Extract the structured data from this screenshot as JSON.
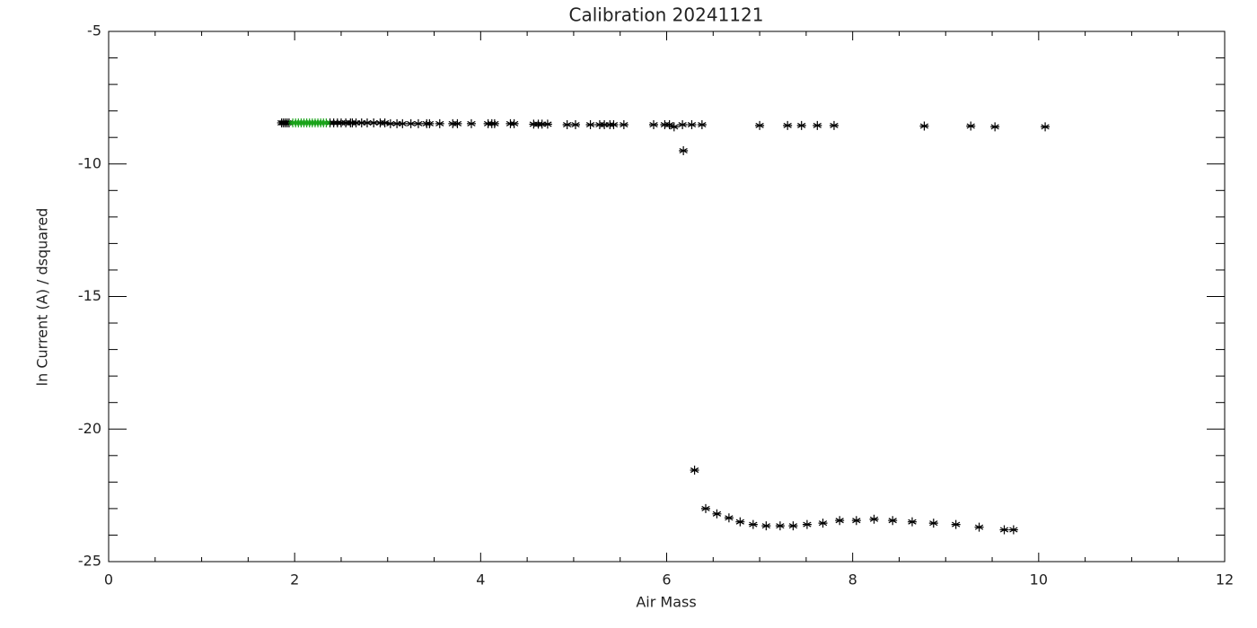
{
  "chart_data": {
    "type": "scatter",
    "title": "Calibration 20241121",
    "x_label": "Air Mass",
    "y_label": "ln Current (A) / dsquared",
    "xlim": [
      0,
      12
    ],
    "xticks": [
      0,
      2,
      4,
      6,
      8,
      10,
      12
    ],
    "x_minor_ticks": [
      0.5,
      1,
      1.5,
      2.5,
      3,
      3.5,
      4.5,
      5,
      5.5,
      6.5,
      7,
      7.5,
      8.5,
      9,
      9.5,
      10.5,
      11,
      11.5
    ],
    "ylim": [
      -25,
      -5
    ],
    "yticks": [
      -25,
      -20,
      -15,
      -10,
      -5
    ],
    "y_minor_ticks": [
      -24,
      -23,
      -22,
      -21,
      -19,
      -18,
      -17,
      -16,
      -14,
      -13,
      -12,
      -11,
      -9,
      -8,
      -7,
      -6
    ],
    "grid": false,
    "marker": "asterisk",
    "series": [
      {
        "color": "#000000",
        "x": [
          1.86,
          1.88,
          1.9,
          1.92,
          1.94,
          2.38,
          2.42,
          2.46,
          2.5,
          2.55,
          2.6,
          2.62,
          2.66,
          2.72,
          2.78,
          2.85,
          2.92,
          2.97,
          3.03,
          3.1,
          3.16,
          3.25,
          3.33,
          3.42,
          3.45,
          3.56,
          3.7,
          3.75,
          3.9,
          4.08,
          4.12,
          4.15,
          4.32,
          4.36,
          4.57,
          4.62,
          4.66,
          4.72,
          4.93,
          5.02,
          5.18,
          5.28,
          5.33,
          5.39,
          5.43,
          5.54,
          5.86,
          5.98,
          6.03,
          6.08,
          6.17,
          6.27,
          6.38,
          6.18,
          7.0,
          7.3,
          7.45,
          7.62,
          7.8,
          8.77,
          9.27,
          9.53,
          10.07,
          6.3,
          6.42,
          6.54,
          6.67,
          6.79,
          6.93,
          7.07,
          7.22,
          7.36,
          7.51,
          7.68,
          7.86,
          8.04,
          8.23,
          8.43,
          8.64,
          8.87,
          9.11,
          9.36,
          9.63,
          9.73
        ],
        "values": [
          -8.45,
          -8.45,
          -8.45,
          -8.45,
          -8.45,
          -8.45,
          -8.45,
          -8.45,
          -8.45,
          -8.45,
          -8.45,
          -8.45,
          -8.45,
          -8.45,
          -8.45,
          -8.45,
          -8.45,
          -8.45,
          -8.48,
          -8.48,
          -8.48,
          -8.48,
          -8.48,
          -8.48,
          -8.48,
          -8.48,
          -8.48,
          -8.48,
          -8.48,
          -8.48,
          -8.48,
          -8.48,
          -8.48,
          -8.48,
          -8.5,
          -8.5,
          -8.5,
          -8.5,
          -8.52,
          -8.52,
          -8.52,
          -8.52,
          -8.52,
          -8.52,
          -8.52,
          -8.52,
          -8.52,
          -8.52,
          -8.52,
          -8.6,
          -8.52,
          -8.52,
          -8.52,
          -9.5,
          -8.55,
          -8.55,
          -8.55,
          -8.55,
          -8.55,
          -8.57,
          -8.57,
          -8.6,
          -8.6,
          -21.55,
          -23.0,
          -23.2,
          -23.35,
          -23.5,
          -23.6,
          -23.65,
          -23.65,
          -23.65,
          -23.6,
          -23.55,
          -23.45,
          -23.45,
          -23.4,
          -23.45,
          -23.5,
          -23.55,
          -23.6,
          -23.7,
          -23.8,
          -23.8
        ]
      },
      {
        "color": "#1aa31a",
        "x": [
          1.98,
          2.01,
          2.04,
          2.07,
          2.1,
          2.13,
          2.16,
          2.19,
          2.22,
          2.25,
          2.28,
          2.31,
          2.34
        ],
        "values": [
          -8.45,
          -8.45,
          -8.45,
          -8.45,
          -8.45,
          -8.45,
          -8.45,
          -8.45,
          -8.45,
          -8.45,
          -8.45,
          -8.45,
          -8.45
        ]
      }
    ]
  }
}
